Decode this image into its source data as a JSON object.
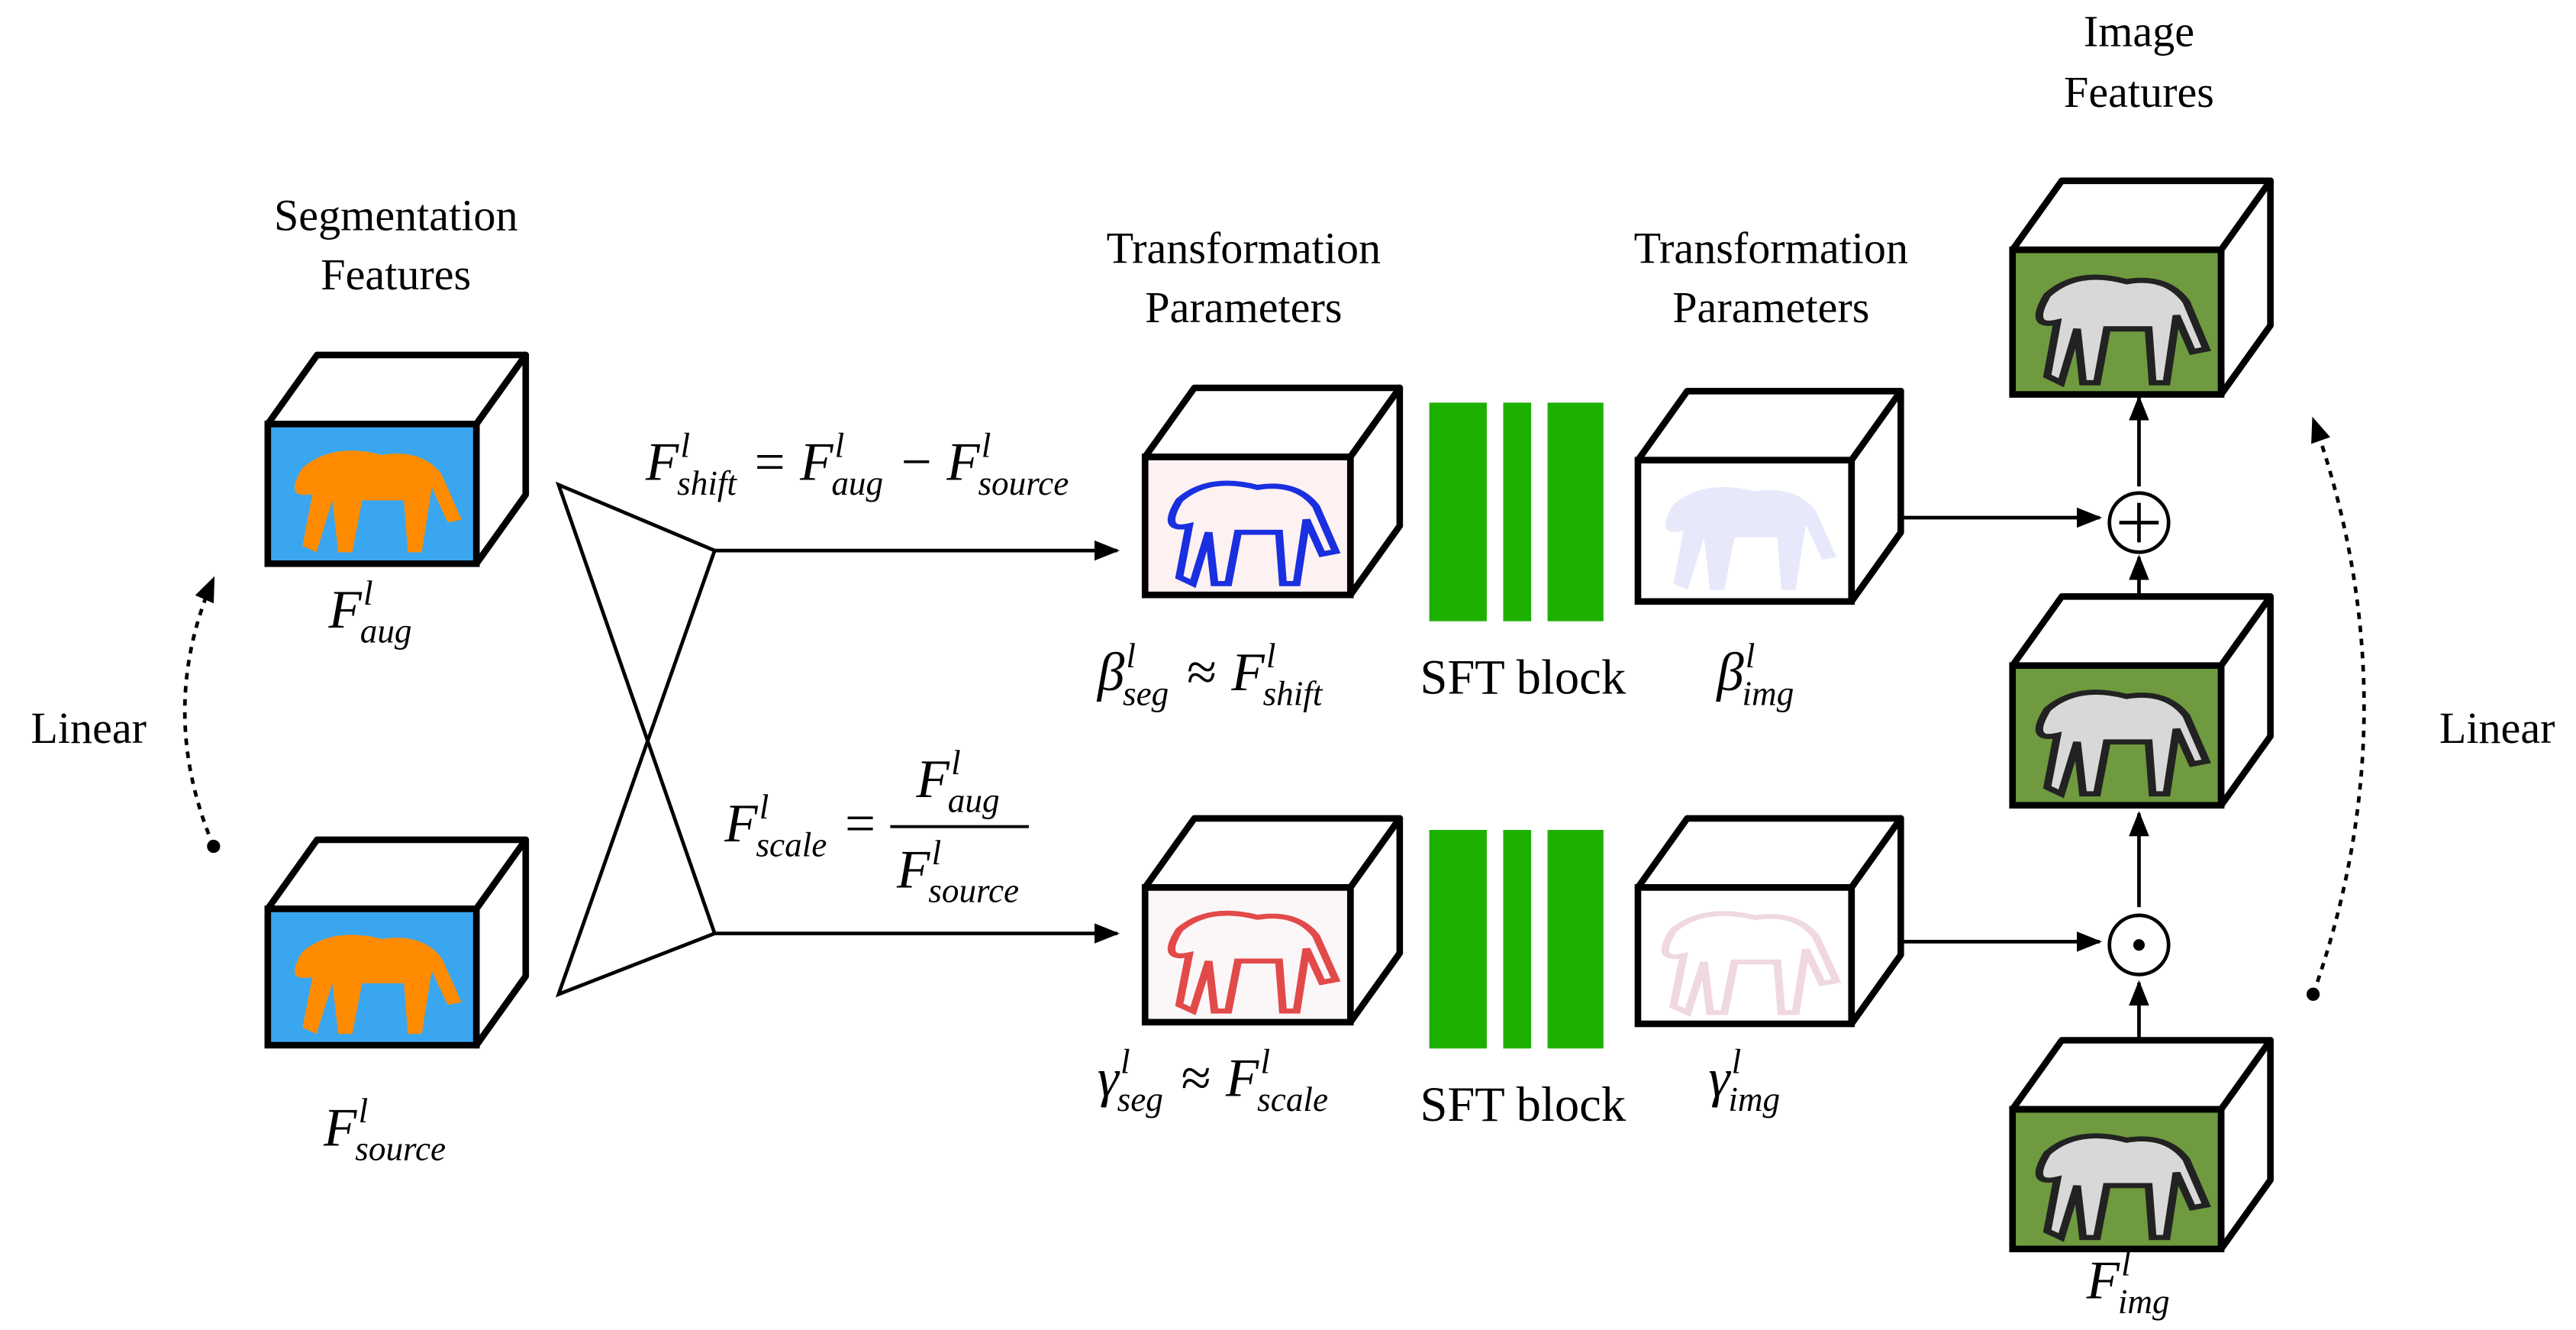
{
  "titles": [
    {
      "lines": [
        "Segmentation",
        "Features"
      ]
    },
    {
      "lines": [
        "Transformation",
        "Parameters"
      ]
    },
    {
      "lines": [
        "Transformation",
        "Parameters"
      ]
    },
    {
      "lines": [
        "Image",
        "Features"
      ]
    }
  ],
  "side_labels": [
    "Linear",
    "Linear"
  ],
  "blocks": [
    "SFT block",
    "SFT block"
  ],
  "formulas": [
    {
      "tokens": [
        {
          "base": "F",
          "sup": "l",
          "sub": "aug"
        }
      ]
    },
    {
      "tokens": [
        {
          "base": "F",
          "sup": "l",
          "sub": "source"
        }
      ]
    },
    {
      "tokens": [
        {
          "base": "F",
          "sup": "l",
          "sub": "shift"
        },
        "=",
        {
          "base": "F",
          "sup": "l",
          "sub": "aug"
        },
        "−",
        {
          "base": "F",
          "sup": "l",
          "sub": "source"
        }
      ]
    },
    {
      "tokens": [
        {
          "base": "F",
          "sup": "l",
          "sub": "scale"
        },
        "=",
        {
          "num": [
            {
              "base": "F",
              "sup": "l",
              "sub": "aug"
            }
          ],
          "den": [
            {
              "base": "F",
              "sup": "l",
              "sub": "source"
            }
          ]
        }
      ]
    },
    {
      "tokens": [
        {
          "base": "β",
          "sup": "l",
          "sub": "seg"
        },
        "≈",
        {
          "base": "F",
          "sup": "l",
          "sub": "shift"
        }
      ]
    },
    {
      "tokens": [
        {
          "base": "γ",
          "sup": "l",
          "sub": "seg"
        },
        "≈",
        {
          "base": "F",
          "sup": "l",
          "sub": "scale"
        }
      ]
    },
    {
      "tokens": [
        {
          "base": "β",
          "sup": "l",
          "sub": "img"
        }
      ]
    },
    {
      "tokens": [
        {
          "base": "γ",
          "sup": "l",
          "sub": "img"
        }
      ]
    },
    {
      "tokens": [
        {
          "base": "F",
          "sup": "l",
          "sub": "img"
        }
      ]
    }
  ]
}
